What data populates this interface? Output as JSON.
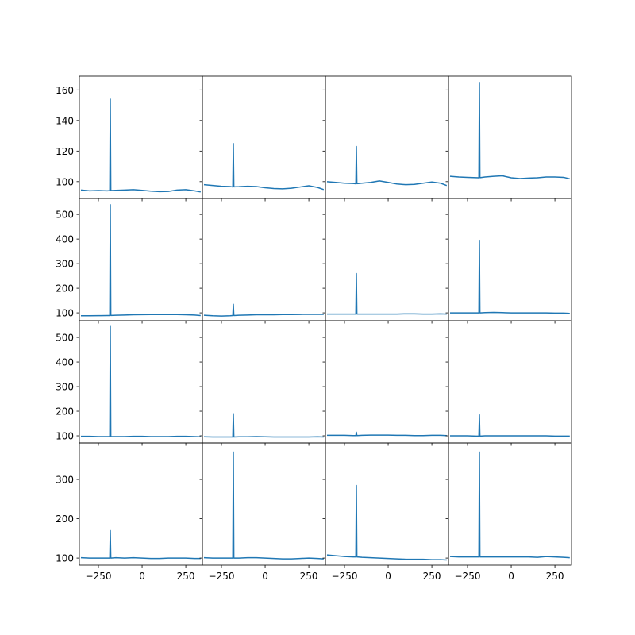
{
  "chart_data": [
    {
      "type": "line",
      "color": "#1f77b4",
      "xlim": [
        -359,
        345
      ],
      "ylim": [
        89,
        169
      ],
      "yticks": [
        100,
        120,
        140,
        160
      ],
      "x": [
        -350,
        -300,
        -250,
        -200,
        -185,
        -182,
        -179,
        -150,
        -100,
        -50,
        0,
        50,
        100,
        150,
        200,
        250,
        300,
        335
      ],
      "values": [
        94.5,
        94,
        94.2,
        94,
        94.1,
        154,
        94.2,
        94.3,
        94.5,
        94.8,
        94.3,
        93.8,
        93.5,
        93.6,
        94.5,
        94.8,
        94,
        93.3
      ]
    },
    {
      "type": "line",
      "color": "#1f77b4",
      "xlim": [
        -359,
        345
      ],
      "ylim": [
        89,
        169
      ],
      "x": [
        -350,
        -300,
        -250,
        -200,
        -185,
        -182,
        -179,
        -150,
        -100,
        -50,
        0,
        50,
        100,
        150,
        200,
        250,
        300,
        335
      ],
      "values": [
        98,
        97.5,
        97,
        96.8,
        96.5,
        125,
        96.6,
        96.7,
        97,
        96.8,
        96,
        95.5,
        95.3,
        95.7,
        96.5,
        97.3,
        96.2,
        94.8
      ]
    },
    {
      "type": "line",
      "color": "#1f77b4",
      "xlim": [
        -359,
        345
      ],
      "ylim": [
        89,
        169
      ],
      "x": [
        -350,
        -300,
        -250,
        -200,
        -185,
        -182,
        -179,
        -150,
        -100,
        -50,
        0,
        50,
        100,
        150,
        200,
        250,
        300,
        335
      ],
      "values": [
        100,
        99.5,
        99,
        98.8,
        98.6,
        123,
        98.7,
        99,
        99.5,
        100.5,
        99.5,
        98.5,
        98,
        98.2,
        99,
        99.8,
        99,
        97.5
      ]
    },
    {
      "type": "line",
      "color": "#1f77b4",
      "xlim": [
        -359,
        345
      ],
      "ylim": [
        89,
        169
      ],
      "x": [
        -350,
        -300,
        -250,
        -200,
        -185,
        -182,
        -179,
        -150,
        -100,
        -50,
        0,
        50,
        100,
        150,
        200,
        250,
        300,
        335
      ],
      "values": [
        103.5,
        103,
        102.8,
        102.6,
        102.5,
        165,
        102.6,
        103,
        103.5,
        103.8,
        102.5,
        102,
        102.3,
        102.5,
        103,
        103,
        102.8,
        101.8
      ]
    },
    {
      "type": "line",
      "color": "#1f77b4",
      "xlim": [
        -359,
        345
      ],
      "ylim": [
        68,
        565
      ],
      "yticks": [
        100,
        200,
        300,
        400,
        500
      ],
      "x": [
        -350,
        -300,
        -250,
        -200,
        -185,
        -182,
        -179,
        -150,
        -100,
        -50,
        0,
        50,
        100,
        150,
        200,
        250,
        300,
        335
      ],
      "values": [
        88,
        88,
        88.5,
        89,
        89,
        540,
        89.5,
        90,
        91,
        92,
        92.5,
        93,
        93,
        93.5,
        93,
        92,
        91,
        89
      ]
    },
    {
      "type": "line",
      "color": "#1f77b4",
      "xlim": [
        -359,
        345
      ],
      "ylim": [
        68,
        565
      ],
      "x": [
        -350,
        -300,
        -250,
        -200,
        -185,
        -182,
        -179,
        -150,
        -100,
        -50,
        0,
        50,
        100,
        150,
        200,
        250,
        300,
        335
      ],
      "values": [
        90,
        88,
        87,
        88,
        89,
        135,
        89,
        90,
        91,
        92,
        92,
        92,
        93,
        93,
        93.5,
        94,
        94,
        94
      ]
    },
    {
      "type": "line",
      "color": "#1f77b4",
      "xlim": [
        -359,
        345
      ],
      "ylim": [
        68,
        565
      ],
      "x": [
        -350,
        -300,
        -250,
        -200,
        -185,
        -182,
        -179,
        -150,
        -100,
        -50,
        0,
        50,
        100,
        150,
        200,
        250,
        300,
        335
      ],
      "values": [
        95,
        95,
        95,
        95,
        95,
        260,
        95,
        95,
        95,
        95,
        95,
        95,
        96,
        96,
        95,
        95,
        96,
        95
      ]
    },
    {
      "type": "line",
      "color": "#1f77b4",
      "xlim": [
        -359,
        345
      ],
      "ylim": [
        68,
        565
      ],
      "x": [
        -350,
        -300,
        -250,
        -200,
        -185,
        -182,
        -179,
        -150,
        -100,
        -50,
        0,
        50,
        100,
        150,
        200,
        250,
        300,
        335
      ],
      "values": [
        100,
        100,
        100,
        100,
        100,
        395,
        100,
        101,
        102,
        101,
        100,
        100,
        100,
        100,
        100,
        99,
        99,
        98
      ]
    },
    {
      "type": "line",
      "color": "#1f77b4",
      "xlim": [
        -359,
        345
      ],
      "ylim": [
        71,
        568
      ],
      "yticks": [
        100,
        200,
        300,
        400,
        500
      ],
      "x": [
        -350,
        -300,
        -250,
        -200,
        -185,
        -182,
        -179,
        -150,
        -100,
        -50,
        0,
        50,
        100,
        150,
        200,
        250,
        300,
        335
      ],
      "values": [
        98,
        98,
        97,
        97,
        97,
        545,
        97,
        97,
        97,
        98,
        98,
        97,
        97,
        97,
        98,
        98,
        97,
        96
      ]
    },
    {
      "type": "line",
      "color": "#1f77b4",
      "xlim": [
        -359,
        345
      ],
      "ylim": [
        71,
        568
      ],
      "x": [
        -350,
        -300,
        -250,
        -200,
        -185,
        -182,
        -179,
        -150,
        -100,
        -50,
        0,
        50,
        100,
        150,
        200,
        250,
        300,
        335
      ],
      "values": [
        96,
        95,
        95,
        95,
        95,
        190,
        95,
        96,
        96,
        97,
        96,
        95,
        95,
        95,
        95,
        95,
        96,
        95
      ]
    },
    {
      "type": "line",
      "color": "#1f77b4",
      "xlim": [
        -359,
        345
      ],
      "ylim": [
        71,
        568
      ],
      "x": [
        -350,
        -300,
        -250,
        -200,
        -185,
        -182,
        -179,
        -150,
        -100,
        -50,
        0,
        50,
        100,
        150,
        200,
        250,
        300,
        335
      ],
      "values": [
        102,
        102,
        102,
        101,
        101,
        115,
        101,
        102,
        103,
        103,
        103,
        102,
        102,
        101,
        101,
        102,
        102,
        101
      ]
    },
    {
      "type": "line",
      "color": "#1f77b4",
      "xlim": [
        -359,
        345
      ],
      "ylim": [
        71,
        568
      ],
      "x": [
        -350,
        -300,
        -250,
        -200,
        -185,
        -182,
        -179,
        -150,
        -100,
        -50,
        0,
        50,
        100,
        150,
        200,
        250,
        300,
        335
      ],
      "values": [
        100,
        100,
        100,
        99,
        99,
        185,
        99,
        100,
        100,
        100,
        100,
        100,
        100,
        100,
        100,
        99,
        99,
        99
      ]
    },
    {
      "type": "line",
      "color": "#1f77b4",
      "xlim": [
        -359,
        345
      ],
      "ylim": [
        82,
        393
      ],
      "yticks": [
        100,
        200,
        300
      ],
      "xticks": [
        {
          "value": -250,
          "label": "−250"
        },
        0,
        250
      ],
      "x": [
        -350,
        -300,
        -250,
        -200,
        -185,
        -182,
        -179,
        -150,
        -100,
        -50,
        0,
        50,
        100,
        150,
        200,
        250,
        300,
        335
      ],
      "values": [
        101,
        100,
        100,
        100,
        100,
        170,
        100,
        101,
        100,
        101,
        100,
        99,
        99,
        100,
        100,
        100,
        99,
        99
      ]
    },
    {
      "type": "line",
      "color": "#1f77b4",
      "xlim": [
        -359,
        345
      ],
      "ylim": [
        82,
        393
      ],
      "xticks": [
        {
          "value": -250,
          "label": "−250"
        },
        0,
        250
      ],
      "x": [
        -350,
        -300,
        -250,
        -200,
        -185,
        -182,
        -179,
        -150,
        -100,
        -50,
        0,
        50,
        100,
        150,
        200,
        250,
        300,
        335
      ],
      "values": [
        101,
        100,
        100,
        100,
        100,
        370,
        100,
        100,
        101,
        101,
        100,
        99,
        98,
        98,
        99,
        100,
        99,
        98
      ]
    },
    {
      "type": "line",
      "color": "#1f77b4",
      "xlim": [
        -359,
        345
      ],
      "ylim": [
        82,
        393
      ],
      "xticks": [
        {
          "value": -250,
          "label": "−250"
        },
        0,
        250
      ],
      "x": [
        -350,
        -300,
        -250,
        -200,
        -185,
        -182,
        -179,
        -150,
        -100,
        -50,
        0,
        50,
        100,
        150,
        200,
        250,
        300,
        335
      ],
      "values": [
        108,
        106,
        104,
        103,
        103,
        285,
        103,
        102,
        101,
        100,
        99,
        98,
        97,
        97,
        97,
        96,
        96,
        95
      ]
    },
    {
      "type": "line",
      "color": "#1f77b4",
      "xlim": [
        -359,
        345
      ],
      "ylim": [
        82,
        393
      ],
      "xticks": [
        {
          "value": -250,
          "label": "−250"
        },
        0,
        250
      ],
      "x": [
        -350,
        -300,
        -250,
        -200,
        -185,
        -182,
        -179,
        -150,
        -100,
        -50,
        0,
        50,
        100,
        150,
        200,
        250,
        300,
        335
      ],
      "values": [
        104,
        103,
        103,
        103,
        103,
        370,
        103,
        103,
        103,
        103,
        103,
        103,
        103,
        102,
        104,
        103,
        102,
        101
      ]
    }
  ]
}
